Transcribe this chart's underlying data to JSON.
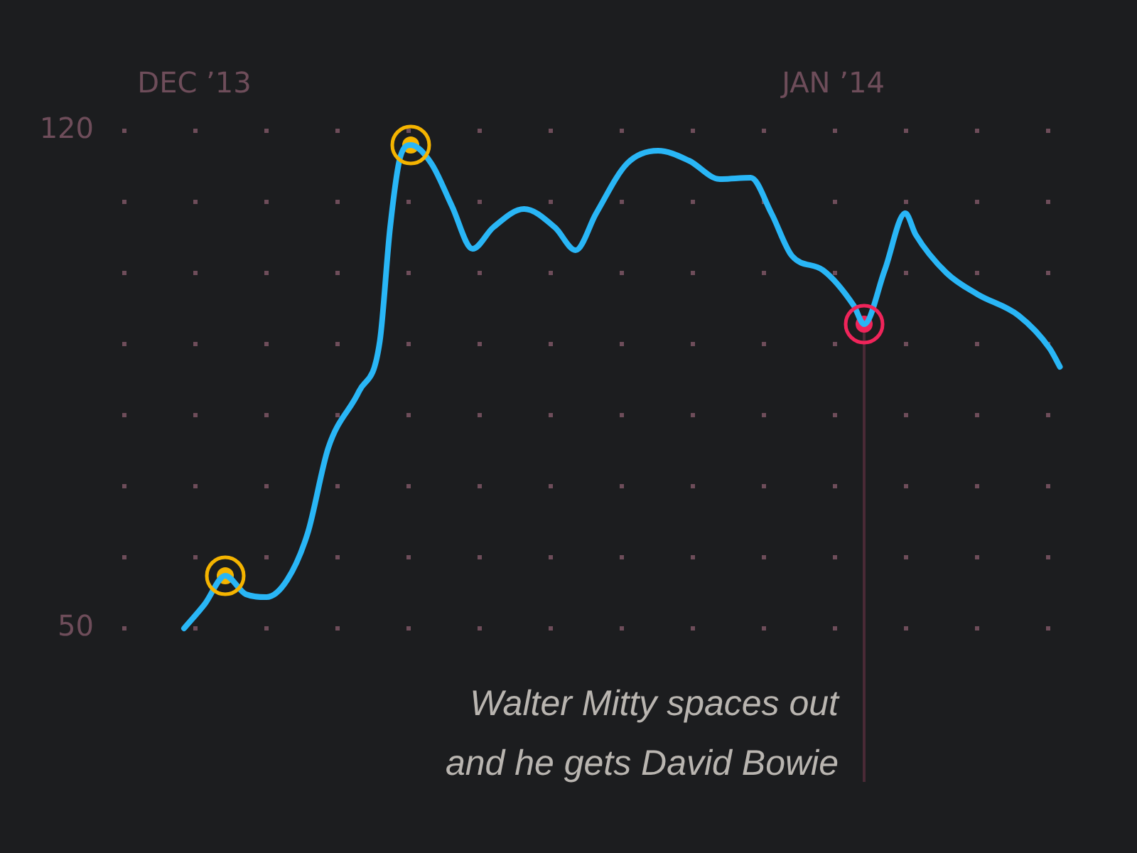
{
  "chart_data": {
    "type": "line",
    "series": [
      {
        "color": "#29b6f6",
        "marker": "none",
        "x": [
          "2013-11-30T12:00",
          "2013-12-01T12:00",
          "2013-12-02T12:00",
          "2013-12-03T12:00",
          "2013-12-04T12:00",
          "2013-12-05T12:00",
          "2013-12-06T12:00",
          "2013-12-07T12:00",
          "2013-12-09T00:00",
          "2013-12-10T00:00",
          "2013-12-10T12:00",
          "2013-12-11T00:00",
          "2013-12-11T12:00",
          "2013-12-12T12:00",
          "2013-12-13T12:00",
          "2013-12-14T12:00",
          "2013-12-15T12:00",
          "2013-12-17T00:00",
          "2013-12-18T12:00",
          "2013-12-19T12:00",
          "2013-12-20T12:00",
          "2013-12-22T00:00",
          "2013-12-23T12:00",
          "2013-12-25T00:00",
          "2013-12-26T12:00",
          "2013-12-28T00:00",
          "2013-12-29T00:00",
          "2013-12-30T00:00",
          "2013-12-31T12:00",
          "2014-01-02T00:00",
          "2014-01-02T12:00",
          "2014-01-03T12:00",
          "2014-01-04T12:00",
          "2014-01-05T00:00",
          "2014-01-06T12:00",
          "2014-01-08T00:00",
          "2014-01-10T00:00",
          "2014-01-11T12:00",
          "2014-01-12T00:00"
        ],
        "values": [
          50,
          53.4,
          57.4,
          54.8,
          54.4,
          56.8,
          63.4,
          75.4,
          83.4,
          90.4,
          106.4,
          116.4,
          118,
          115.4,
          109.4,
          103.4,
          106.4,
          109,
          106.4,
          103.2,
          108.4,
          115.4,
          117.2,
          115.8,
          113.2,
          113.4,
          108.4,
          102.4,
          100.4,
          95.4,
          92.8,
          100.4,
          108.4,
          105.4,
          100,
          97,
          94,
          89.4,
          86.8
        ]
      },
      {
        "type": "scatter",
        "marker": "circle",
        "x": [
          "2013-12-02T12:00",
          "2013-12-11T12:00",
          "2014-01-02T12:00"
        ],
        "values": [
          57.4,
          118,
          92.8
        ],
        "colors": [
          "#f5b400",
          "#f5b400",
          "#f0245a"
        ]
      }
    ],
    "xlim": [
      "2013-11-27T12:00",
      "2014-01-12T12:00"
    ],
    "xticks": [
      {
        "value": "2013-12-01T00:00",
        "label": "DEC ’13"
      },
      {
        "value": "2014-01-01T00:00",
        "label": "JAN ’14"
      }
    ],
    "ylim": [
      50,
      120
    ],
    "yticks": [
      50,
      {
        "value": 60,
        "label": null
      },
      {
        "value": 70,
        "label": null
      },
      {
        "value": 80,
        "label": null
      },
      {
        "value": 90,
        "label": null
      },
      {
        "value": 100,
        "label": null
      },
      {
        "value": 110,
        "label": null
      },
      120
    ],
    "grid": "y",
    "legend": false,
    "ref_lines": [
      {
        "axis": "x",
        "value": "2014-01-02T12:00",
        "color": "#4a2a36"
      }
    ],
    "annotations": [
      "Walter Mitty spaces out and he gets David Bowie"
    ]
  }
}
